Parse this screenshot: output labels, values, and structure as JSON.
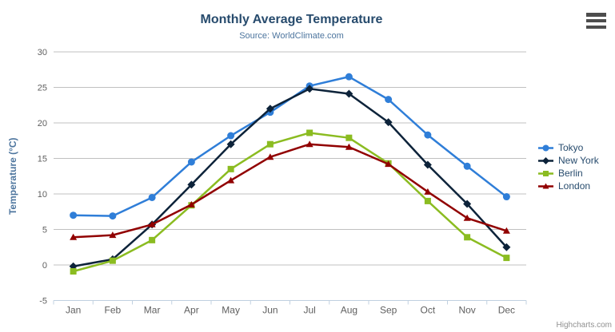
{
  "chart_data": {
    "type": "line",
    "title": "Monthly Average Temperature",
    "subtitle": "Source: WorldClimate.com",
    "xlabel": "",
    "ylabel": "Temperature (°C)",
    "categories": [
      "Jan",
      "Feb",
      "Mar",
      "Apr",
      "May",
      "Jun",
      "Jul",
      "Aug",
      "Sep",
      "Oct",
      "Nov",
      "Dec"
    ],
    "ylim": [
      -5,
      30
    ],
    "ytick_step": 5,
    "grid": true,
    "legend_position": "right",
    "grid_color": "#c0c0c0",
    "axis_line_color": "#c0d0e0",
    "tick_label_color": "#606060",
    "axis_title_color": "#4d759e",
    "legend_text_color": "#274b6d",
    "series": [
      {
        "name": "Tokyo",
        "color": "#2f7ed8",
        "marker": "circle",
        "values": [
          7.0,
          6.9,
          9.5,
          14.5,
          18.2,
          21.5,
          25.2,
          26.5,
          23.3,
          18.3,
          13.9,
          9.6
        ]
      },
      {
        "name": "New York",
        "color": "#0d233a",
        "marker": "diamond",
        "values": [
          -0.2,
          0.8,
          5.7,
          11.3,
          17.0,
          22.0,
          24.8,
          24.1,
          20.1,
          14.1,
          8.6,
          2.5
        ]
      },
      {
        "name": "Berlin",
        "color": "#8bbc21",
        "marker": "square",
        "values": [
          -0.9,
          0.6,
          3.5,
          8.4,
          13.5,
          17.0,
          18.6,
          17.9,
          14.3,
          9.0,
          3.9,
          1.0
        ]
      },
      {
        "name": "London",
        "color": "#910000",
        "marker": "triangle",
        "values": [
          3.9,
          4.2,
          5.7,
          8.5,
          11.9,
          15.2,
          17.0,
          16.6,
          14.2,
          10.3,
          6.6,
          4.8
        ]
      }
    ]
  },
  "credits": "Highcharts.com"
}
